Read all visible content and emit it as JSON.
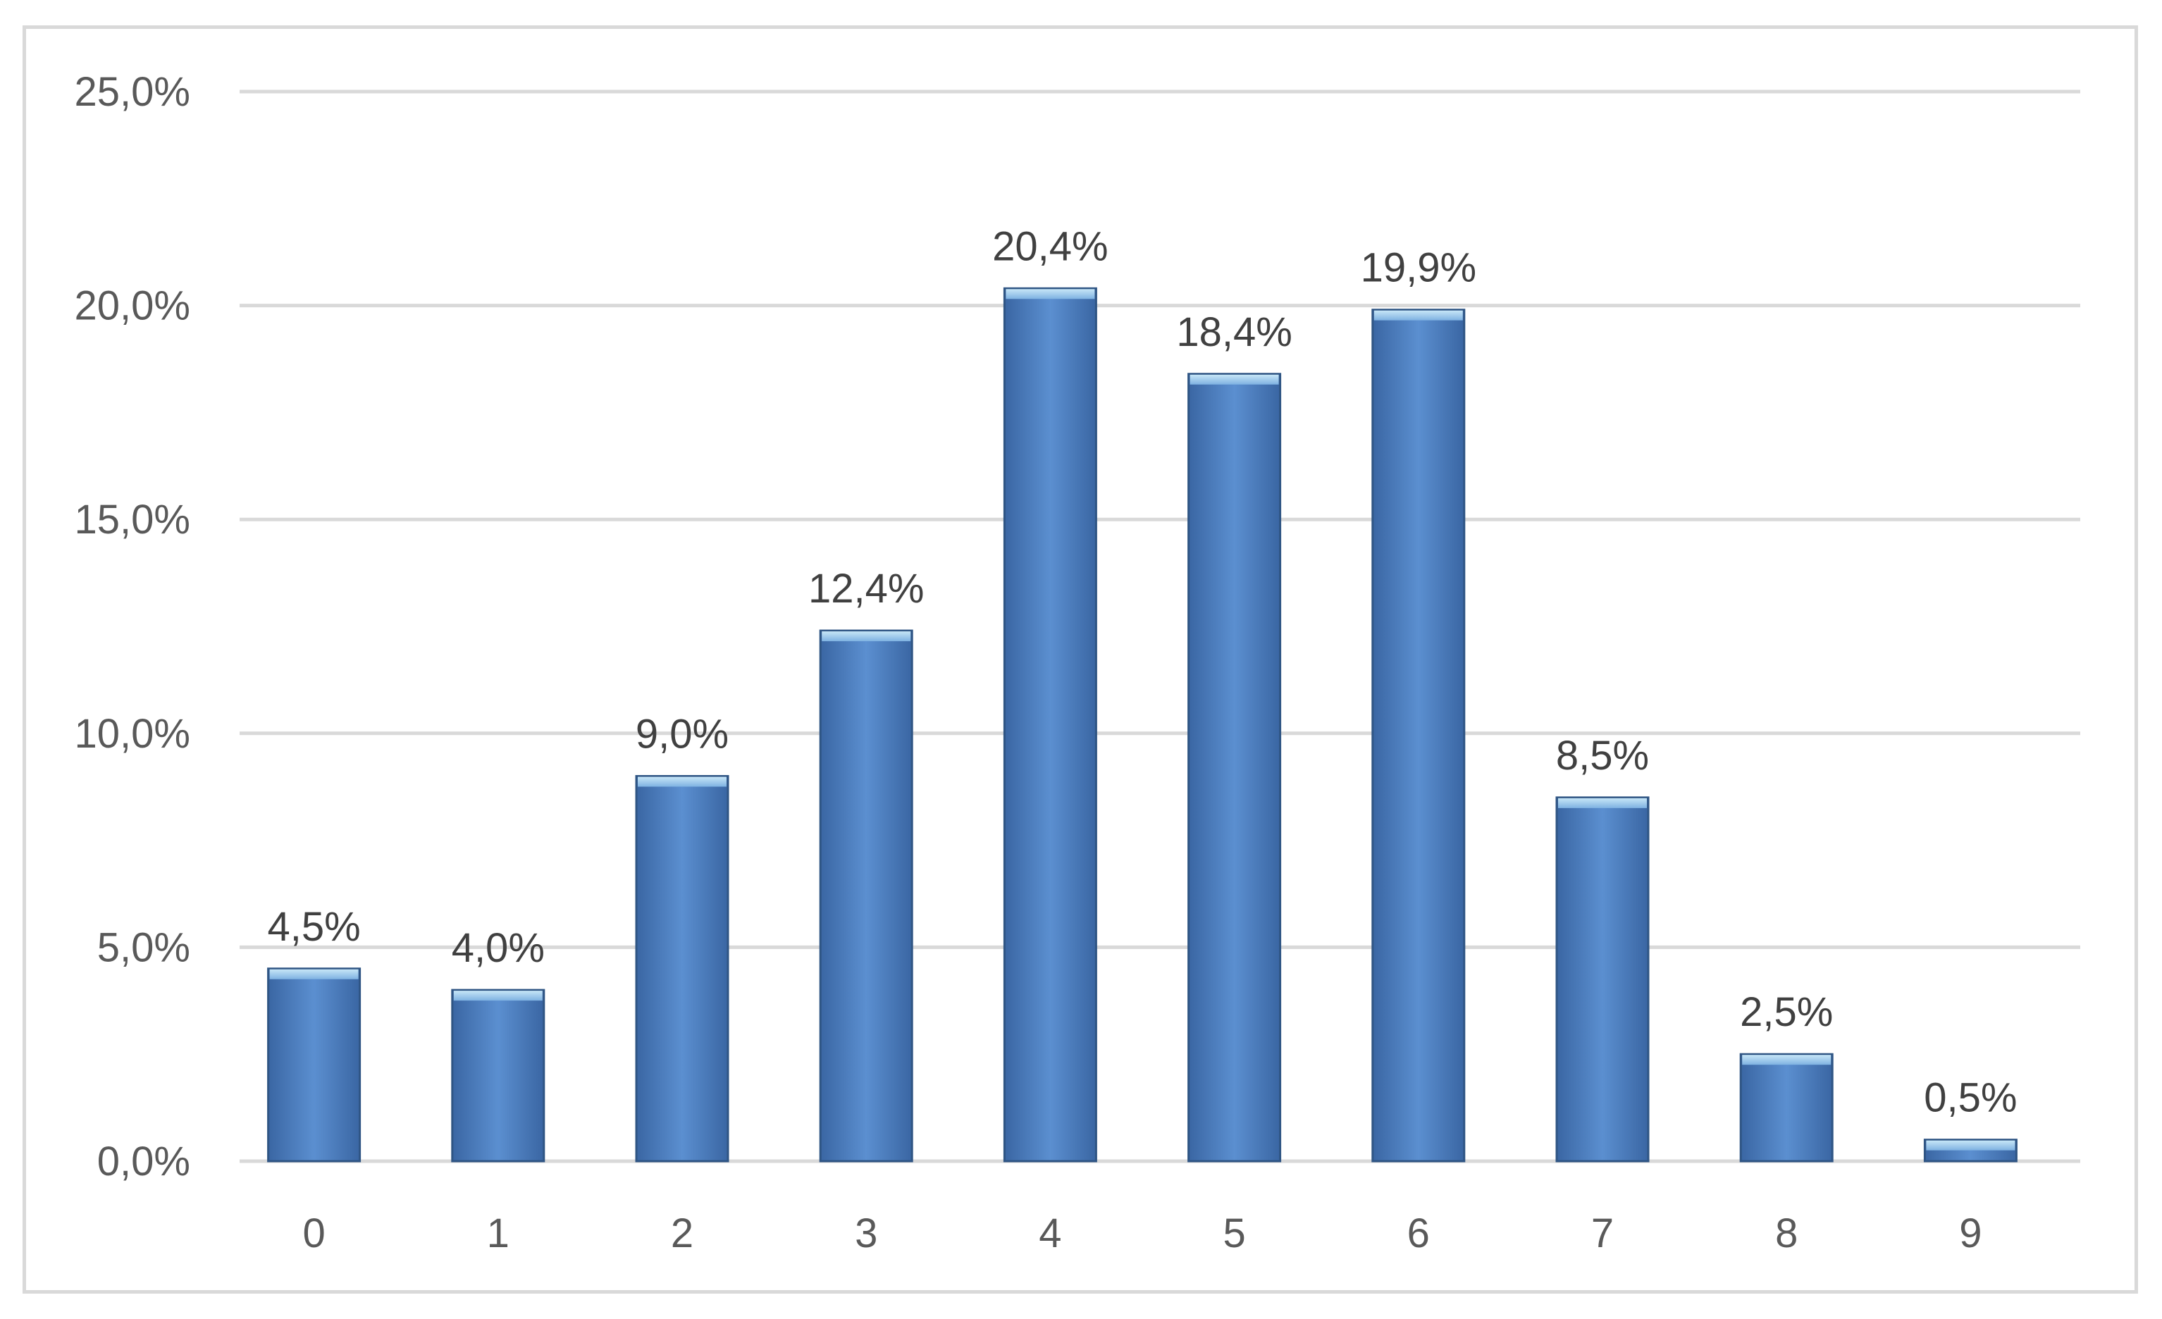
{
  "chart_data": {
    "type": "bar",
    "categories": [
      "0",
      "1",
      "2",
      "3",
      "4",
      "5",
      "6",
      "7",
      "8",
      "9"
    ],
    "values": [
      4.5,
      4.0,
      9.0,
      12.4,
      20.4,
      18.4,
      19.9,
      8.5,
      2.5,
      0.5
    ],
    "value_labels": [
      "4,5%",
      "4,0%",
      "9,0%",
      "12,4%",
      "20,4%",
      "18,4%",
      "19,9%",
      "8,5%",
      "2,5%",
      "0,5%"
    ],
    "y_ticks": [
      0,
      5,
      10,
      15,
      20,
      25
    ],
    "y_tick_labels": [
      "0,0%",
      "5,0%",
      "10,0%",
      "15,0%",
      "20,0%",
      "25,0%"
    ],
    "ylim": [
      0,
      25
    ],
    "grid": true,
    "legend": "none",
    "title": "",
    "xlabel": "",
    "ylabel": "",
    "colors": {
      "bar_top": "#7aa6dc",
      "bar_mid": "#4f81bd",
      "bar_bottom": "#3f6faf",
      "bar_cap": "#a9d3f0",
      "grid": "#d9d9d9",
      "frame": "#d9d9d9"
    }
  }
}
